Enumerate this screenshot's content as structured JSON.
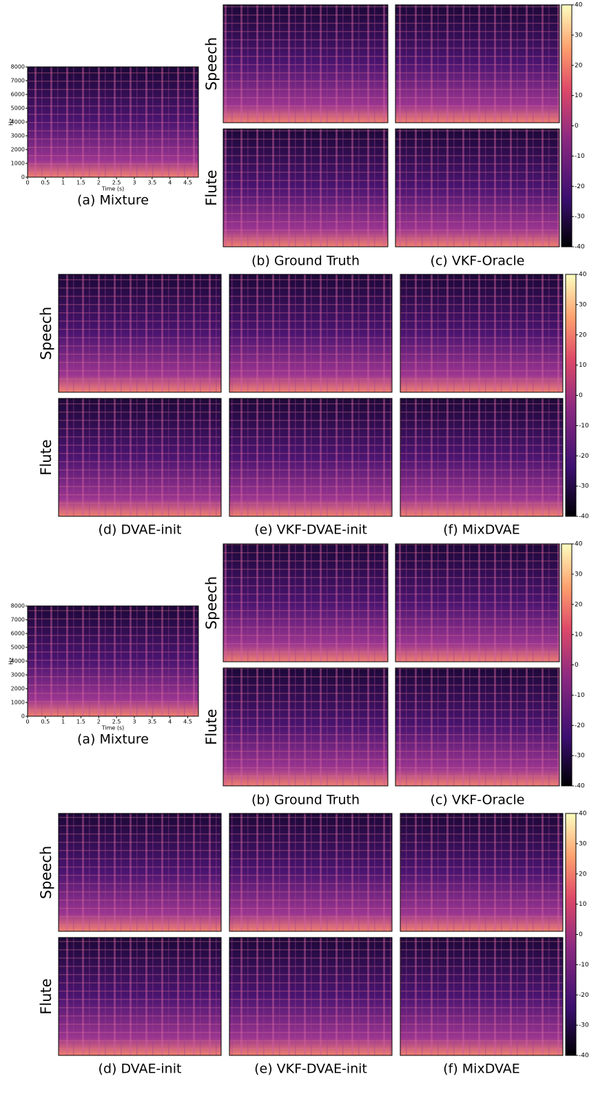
{
  "figures": [
    {
      "mixture": {
        "caption": "(a) Mixture",
        "xlabel": "Time (s)",
        "ylabel": "Hz",
        "xlim": [
          0,
          4.8
        ],
        "ylim": [
          0,
          8000
        ],
        "xticks": [
          0,
          0.5,
          1,
          1.5,
          2,
          2.5,
          3,
          3.5,
          4,
          4.5
        ],
        "yticks": [
          0,
          1000,
          2000,
          3000,
          4000,
          5000,
          6000,
          7000,
          8000
        ]
      },
      "top": {
        "rows": [
          "Speech",
          "Flute"
        ],
        "captions": [
          "(b) Ground Truth",
          "(c) VKF-Oracle"
        ],
        "colorbar": {
          "lim": [
            -40,
            40
          ],
          "ticks": [
            -40,
            -30,
            -20,
            -10,
            0,
            10,
            20,
            30,
            40
          ]
        }
      },
      "bottom": {
        "rows": [
          "Speech",
          "Flute"
        ],
        "captions": [
          "(d) DVAE-init",
          "(e) VKF-DVAE-init",
          "(f) MixDVAE"
        ],
        "colorbar": {
          "lim": [
            -40,
            40
          ],
          "ticks": [
            -40,
            -30,
            -20,
            -10,
            0,
            10,
            20,
            30,
            40
          ]
        }
      }
    },
    {
      "mixture": {
        "caption": "(a) Mixture",
        "xlabel": "Time (s)",
        "ylabel": "Hz",
        "xlim": [
          0,
          4.8
        ],
        "ylim": [
          0,
          8000
        ],
        "xticks": [
          0,
          0.5,
          1,
          1.5,
          2,
          2.5,
          3,
          3.5,
          4,
          4.5
        ],
        "yticks": [
          0,
          1000,
          2000,
          3000,
          4000,
          5000,
          6000,
          7000,
          8000
        ]
      },
      "top": {
        "rows": [
          "Speech",
          "Flute"
        ],
        "captions": [
          "(b) Ground Truth",
          "(c) VKF-Oracle"
        ],
        "colorbar": {
          "lim": [
            -40,
            40
          ],
          "ticks": [
            -40,
            -30,
            -20,
            -10,
            0,
            10,
            20,
            30,
            40
          ]
        }
      },
      "bottom": {
        "rows": [
          "Speech",
          "Flute"
        ],
        "captions": [
          "(d) DVAE-init",
          "(e) VKF-DVAE-init",
          "(f) MixDVAE"
        ],
        "colorbar": {
          "lim": [
            -40,
            40
          ],
          "ticks": [
            -40,
            -30,
            -20,
            -10,
            0,
            10,
            20,
            30,
            40
          ]
        }
      }
    }
  ]
}
